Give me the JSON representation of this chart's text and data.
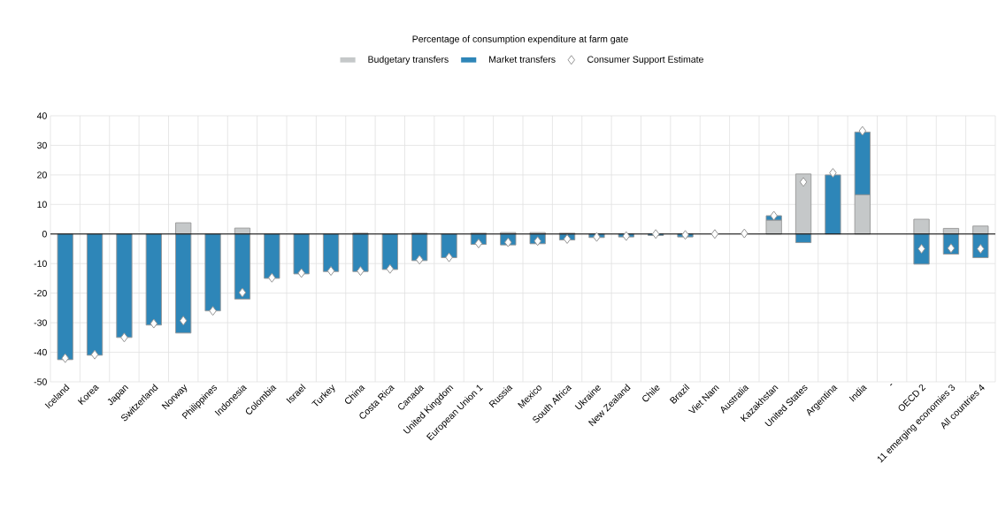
{
  "chart_data": {
    "type": "bar",
    "title": "Percentage of consumption expenditure at farm gate",
    "categories": [
      "Iceland",
      "Korea",
      "Japan",
      "Switzerland",
      "Norway",
      "Philippines",
      "Indonesia",
      "Colombia",
      "Israel",
      "Turkey",
      "China",
      "Costa Rica",
      "Canada",
      "United Kingdom",
      "European Union 1",
      "Russia",
      "Mexico",
      "South Africa",
      "Ukraine",
      "New Zealand",
      "Chile",
      "Brazil",
      "Viet Nam",
      "Australia",
      "Kazakhstan",
      "United States",
      "Argentina",
      "India",
      "-",
      "OECD 2",
      "11 emerging economies 3",
      "All countries 4"
    ],
    "stacked": true,
    "series": [
      {
        "name": "Budgetary transfers",
        "color": "#c5c8c9",
        "values": [
          0,
          0,
          0,
          0,
          3.8,
          0,
          2,
          0,
          0,
          0,
          0.3,
          0,
          0.3,
          0,
          0.3,
          0.5,
          0.5,
          0.3,
          0,
          null,
          0,
          null,
          0,
          0,
          4.7,
          20.3,
          0,
          13.3,
          null,
          5,
          1.9,
          2.7
        ]
      },
      {
        "name": "Market transfers",
        "color": "#2e86b8",
        "values": [
          -42.5,
          -41,
          -35,
          -30.8,
          -33.5,
          -26,
          -22,
          -15,
          -13.5,
          -12.7,
          -12.7,
          -12,
          -9,
          -8,
          -3.5,
          -3.7,
          -3.3,
          -2,
          -1.2,
          -1,
          -0.5,
          -1,
          0,
          0,
          1.5,
          -2.9,
          20,
          21.2,
          null,
          -10.2,
          -6.8,
          -8
        ]
      },
      {
        "name": "Consumer Support Estimate",
        "type": "scatter",
        "marker": "diamond",
        "color": "#ffffff",
        "values": [
          -42,
          -40.8,
          -35,
          -30.3,
          -29.3,
          -26,
          -19.8,
          -14.8,
          -13.2,
          -12.5,
          -12.5,
          -11.8,
          -8.7,
          -7.9,
          -3.2,
          -2.8,
          -2.4,
          -1.7,
          -1,
          -0.7,
          0,
          -0.3,
          0,
          0.2,
          6.2,
          17.6,
          20.7,
          34.9,
          null,
          -5,
          -4.8,
          -5
        ]
      }
    ],
    "ylim": [
      -50,
      40
    ],
    "yticks": [
      -50,
      -40,
      -30,
      -20,
      -10,
      0,
      10,
      20,
      30,
      40
    ],
    "grid": true,
    "legend": "top",
    "ref_lines": [
      {
        "axis": "y",
        "value": 0,
        "color": "#000000"
      }
    ]
  }
}
